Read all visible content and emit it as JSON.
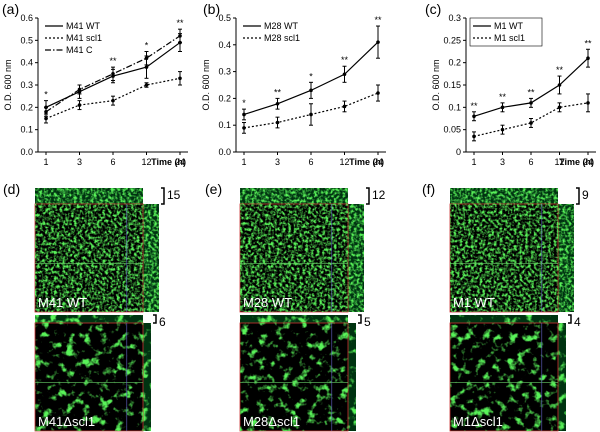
{
  "chart_data": [
    {
      "type": "line",
      "title": "(a)",
      "x_label": "Time (h)",
      "y_label": "O.D. 600 nm",
      "categories": [
        "1",
        "3",
        "6",
        "12",
        "24"
      ],
      "ylim": [
        0,
        0.6
      ],
      "yticks": [
        {
          "value": 0,
          "label": "0.0"
        },
        0.1,
        0.2,
        0.3,
        0.4,
        0.5,
        0.6
      ],
      "series": [
        {
          "name": "M41 WT",
          "color": "#000000",
          "dash": "solid",
          "values": [
            0.2,
            0.27,
            0.34,
            0.38,
            0.49
          ],
          "errors": [
            0.03,
            0.03,
            0.03,
            0.05,
            0.04
          ]
        },
        {
          "name": "M41 scl1",
          "color": "#000000",
          "dash": "dotted",
          "values": [
            0.15,
            0.21,
            0.23,
            0.3,
            0.33
          ],
          "errors": [
            0.02,
            0.02,
            0.02,
            0.01,
            0.03
          ]
        },
        {
          "name": "M41 C",
          "color": "#000000",
          "dash": "dashdot",
          "values": [
            0.18,
            0.28,
            0.35,
            0.42,
            0.52
          ],
          "errors": [
            0.02,
            0.02,
            0.03,
            0.03,
            0.03
          ]
        }
      ],
      "significance": [
        "*",
        null,
        "**",
        "*",
        "**"
      ]
    },
    {
      "type": "line",
      "title": "(b)",
      "x_label": "Time (h)",
      "y_label": "O.D. 600 nm",
      "categories": [
        "1",
        "3",
        "6",
        "12",
        "24"
      ],
      "ylim": [
        0,
        0.5
      ],
      "yticks": [
        {
          "value": 0,
          "label": "0.0"
        },
        0.1,
        0.2,
        0.3,
        0.4,
        0.5
      ],
      "series": [
        {
          "name": "M28 WT",
          "color": "#000000",
          "dash": "solid",
          "values": [
            0.14,
            0.18,
            0.23,
            0.29,
            0.41
          ],
          "errors": [
            0.02,
            0.02,
            0.03,
            0.03,
            0.06
          ]
        },
        {
          "name": "M28 scl1",
          "color": "#000000",
          "dash": "dotted",
          "values": [
            0.09,
            0.11,
            0.14,
            0.17,
            0.22
          ],
          "errors": [
            0.02,
            0.02,
            0.04,
            0.02,
            0.03
          ]
        }
      ],
      "significance": [
        "*",
        "**",
        "*",
        "**",
        "**"
      ]
    },
    {
      "type": "line",
      "title": "(c)",
      "x_label": "Time (h)",
      "y_label": "O.D. 600 nm",
      "categories": [
        "1",
        "3",
        "6",
        "12",
        "24"
      ],
      "ylim": [
        0,
        0.3
      ],
      "yticks": [
        0,
        0.05,
        0.1,
        0.15,
        0.2,
        0.25,
        0.3
      ],
      "series": [
        {
          "name": "M1 WT",
          "color": "#000000",
          "dash": "solid",
          "values": [
            0.08,
            0.1,
            0.11,
            0.15,
            0.21
          ],
          "errors": [
            0.01,
            0.01,
            0.01,
            0.02,
            0.02
          ]
        },
        {
          "name": "M1 scl1",
          "color": "#000000",
          "dash": "dotted",
          "values": [
            0.035,
            0.05,
            0.065,
            0.1,
            0.11
          ],
          "errors": [
            0.01,
            0.01,
            0.01,
            0.01,
            0.02
          ]
        }
      ],
      "significance": [
        "**",
        "**",
        "**",
        "**",
        "**"
      ]
    }
  ],
  "images": [
    {
      "label": "(d)",
      "top": {
        "caption": "M41 WT",
        "thickness": 15
      },
      "bottom": {
        "caption": "M41Δscl1",
        "thickness": 6
      }
    },
    {
      "label": "(e)",
      "top": {
        "caption": "M28 WT",
        "thickness": 12
      },
      "bottom": {
        "caption": "M28Δscl1",
        "thickness": 5
      }
    },
    {
      "label": "(f)",
      "top": {
        "caption": "M1 WT",
        "thickness": 9
      },
      "bottom": {
        "caption": "M1Δscl1",
        "thickness": 4
      }
    }
  ]
}
